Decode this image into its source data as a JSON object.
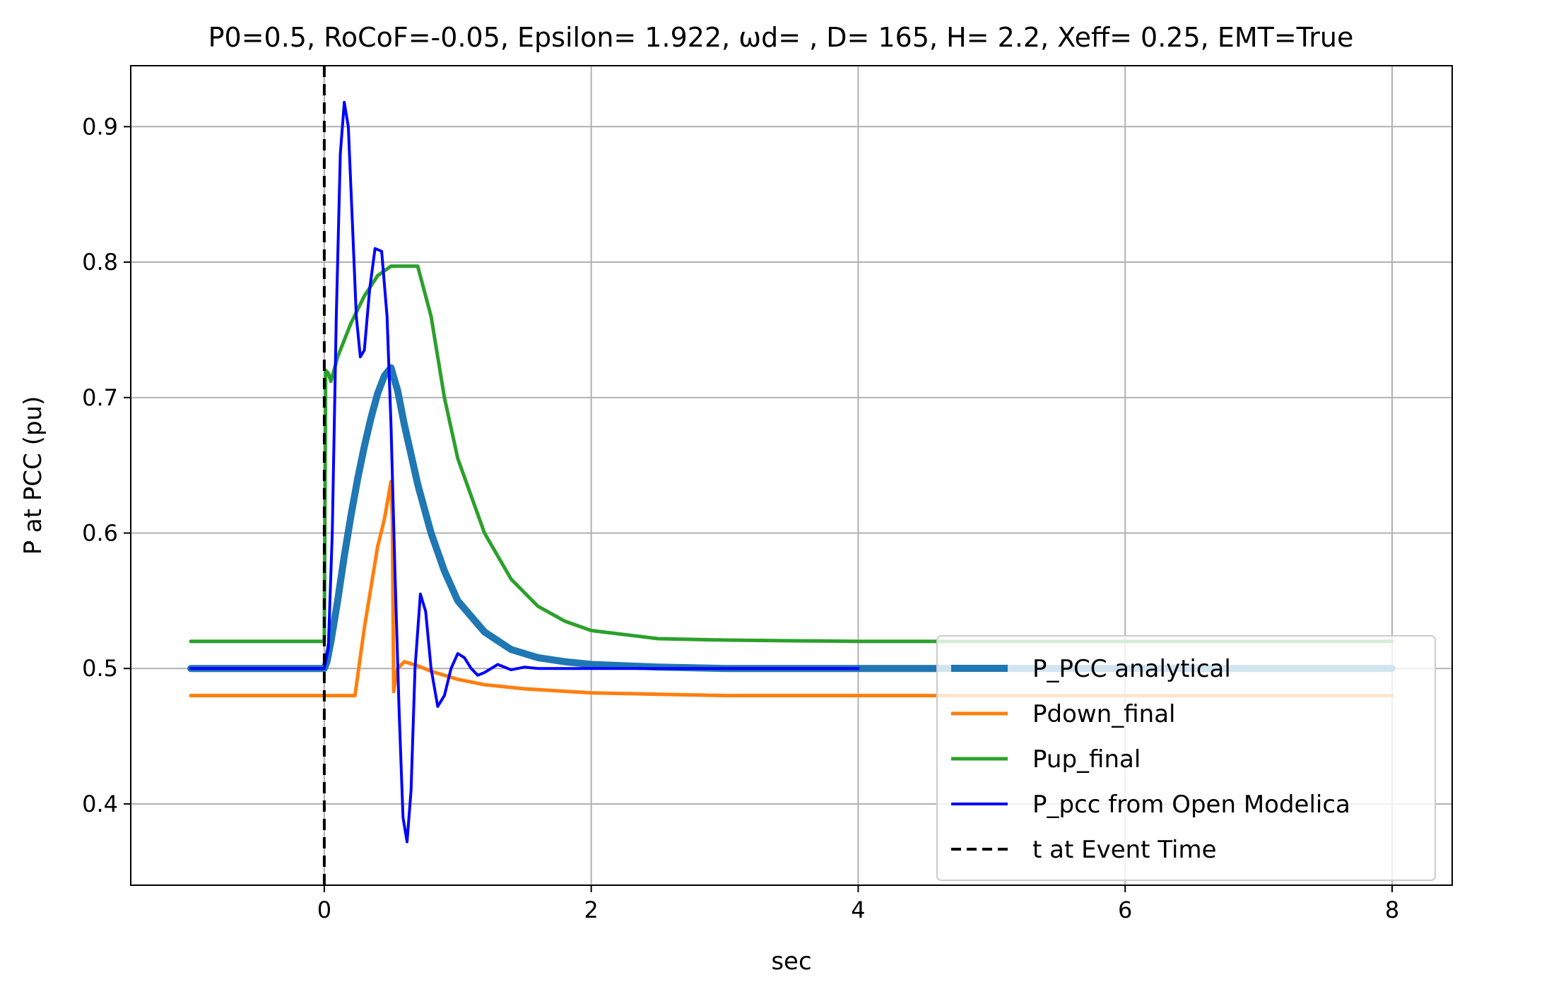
{
  "chart_data": {
    "type": "line",
    "title": "P0=0.5, RoCoF=-0.05, Epsilon= 1.922, ωd= , D= 165, H= 2.2, Xeff= 0.25, EMT=True",
    "xlabel": "sec",
    "ylabel": "P at PCC (pu)",
    "xlim": [
      -1.45,
      8.45
    ],
    "ylim": [
      0.34,
      0.945
    ],
    "xticks": [
      0,
      2,
      4,
      6,
      8
    ],
    "yticks": [
      0.4,
      0.5,
      0.6,
      0.7,
      0.8,
      0.9
    ],
    "xtick_labels": [
      "0",
      "2",
      "4",
      "6",
      "8"
    ],
    "ytick_labels": [
      "0.4",
      "0.5",
      "0.6",
      "0.7",
      "0.8",
      "0.9"
    ],
    "grid": true,
    "legend_position": "lower-right",
    "event_time": 0,
    "series": [
      {
        "name": "P_PCC analytical",
        "color": "#1f77b4",
        "width": 10,
        "dash": "",
        "x": [
          -1,
          0,
          0.02,
          0.05,
          0.1,
          0.15,
          0.2,
          0.25,
          0.3,
          0.35,
          0.4,
          0.45,
          0.5,
          0.55,
          0.6,
          0.7,
          0.8,
          0.9,
          1.0,
          1.2,
          1.4,
          1.6,
          1.8,
          2.0,
          2.5,
          3.0,
          4.0,
          5.0,
          6.0,
          8.0
        ],
        "y": [
          0.5,
          0.5,
          0.505,
          0.52,
          0.55,
          0.583,
          0.613,
          0.64,
          0.664,
          0.685,
          0.703,
          0.716,
          0.722,
          0.705,
          0.68,
          0.636,
          0.6,
          0.572,
          0.55,
          0.527,
          0.514,
          0.508,
          0.505,
          0.503,
          0.501,
          0.5,
          0.5,
          0.5,
          0.5,
          0.5
        ]
      },
      {
        "name": "Pdown_final",
        "color": "#ff7f0e",
        "width": 5,
        "dash": "",
        "x": [
          -1,
          0,
          0.2,
          0.23,
          0.3,
          0.4,
          0.45,
          0.5,
          0.51,
          0.52,
          0.53,
          0.55,
          0.6,
          0.7,
          0.8,
          1.0,
          1.2,
          1.5,
          2.0,
          2.5,
          3.0,
          4.0,
          5.0,
          6.0,
          8.0
        ],
        "y": [
          0.48,
          0.48,
          0.48,
          0.48,
          0.53,
          0.59,
          0.61,
          0.638,
          0.61,
          0.483,
          0.49,
          0.5,
          0.505,
          0.502,
          0.498,
          0.492,
          0.488,
          0.485,
          0.482,
          0.481,
          0.48,
          0.48,
          0.48,
          0.48,
          0.48
        ]
      },
      {
        "name": "Pup_final",
        "color": "#2ca02c",
        "width": 5,
        "dash": "",
        "x": [
          -1,
          0,
          0.01,
          0.03,
          0.05,
          0.1,
          0.2,
          0.3,
          0.4,
          0.5,
          0.7,
          0.8,
          0.9,
          1.0,
          1.2,
          1.4,
          1.6,
          1.8,
          2.0,
          2.5,
          3.0,
          4.0,
          5.0,
          6.0,
          8.0
        ],
        "y": [
          0.52,
          0.52,
          0.72,
          0.718,
          0.712,
          0.73,
          0.755,
          0.775,
          0.79,
          0.797,
          0.797,
          0.76,
          0.7,
          0.655,
          0.6,
          0.566,
          0.546,
          0.535,
          0.528,
          0.522,
          0.521,
          0.52,
          0.52,
          0.52,
          0.52
        ]
      },
      {
        "name": "P_pcc from Open Modelica",
        "color": "#0000ff",
        "width": 4,
        "dash": "",
        "x": [
          -1,
          0,
          0.03,
          0.06,
          0.09,
          0.12,
          0.15,
          0.18,
          0.21,
          0.24,
          0.27,
          0.3,
          0.34,
          0.38,
          0.43,
          0.47,
          0.5,
          0.53,
          0.56,
          0.59,
          0.62,
          0.65,
          0.68,
          0.72,
          0.76,
          0.8,
          0.85,
          0.9,
          0.95,
          1.0,
          1.05,
          1.1,
          1.15,
          1.2,
          1.3,
          1.4,
          1.5,
          1.6,
          1.7,
          2.0,
          3.0,
          4.0
        ],
        "y": [
          0.5,
          0.5,
          0.515,
          0.6,
          0.76,
          0.88,
          0.918,
          0.9,
          0.83,
          0.76,
          0.73,
          0.735,
          0.78,
          0.81,
          0.808,
          0.76,
          0.68,
          0.57,
          0.47,
          0.39,
          0.372,
          0.41,
          0.5,
          0.555,
          0.542,
          0.5,
          0.472,
          0.48,
          0.5,
          0.511,
          0.508,
          0.5,
          0.495,
          0.497,
          0.503,
          0.499,
          0.501,
          0.5,
          0.5,
          0.5,
          0.5,
          0.5
        ]
      },
      {
        "name": "t at Event Time",
        "color": "#000000",
        "width": 4,
        "dash": "16,10",
        "x": [
          0,
          0
        ],
        "y": [
          0.34,
          0.945
        ]
      }
    ]
  }
}
